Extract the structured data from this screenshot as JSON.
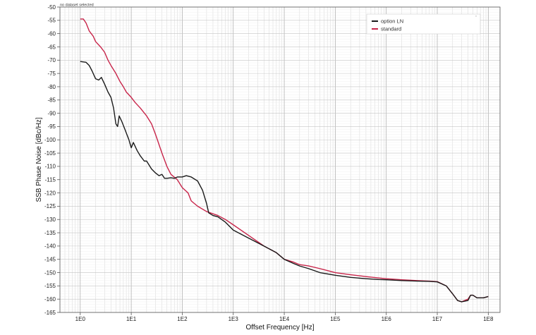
{
  "status": "no dataset selected",
  "chart_data": {
    "type": "line",
    "title": "",
    "xlabel": "Offset Frequency [Hz]",
    "ylabel": "SSB Phase Noise [dBc/Hz]",
    "x_scale": "log",
    "xlim": [
      0.4,
      170000000
    ],
    "ylim": [
      -165,
      -50
    ],
    "x_ticks": [
      1,
      10,
      100,
      1000,
      10000,
      100000,
      1000000,
      10000000,
      100000000
    ],
    "x_tick_labels": [
      "1E0",
      "1E1",
      "1E2",
      "1E3",
      "1E4",
      "1E5",
      "1E6",
      "1E7",
      "1E8"
    ],
    "y_ticks": [
      -50,
      -55,
      -60,
      -65,
      -70,
      -75,
      -80,
      -85,
      -90,
      -95,
      -100,
      -105,
      -110,
      -115,
      -120,
      -125,
      -130,
      -135,
      -140,
      -145,
      -150,
      -155,
      -160,
      -165
    ],
    "y_tick_labels": [
      "-50",
      "-55",
      "-60",
      "-65",
      "-70",
      "-75",
      "-80",
      "-85",
      "-90",
      "-95",
      "-100",
      "-105",
      "-110",
      "-115",
      "-120",
      "-125",
      "-130",
      "-135",
      "-140",
      "-145",
      "-150",
      "-155",
      "-160",
      "-165"
    ],
    "grid": true,
    "legend_position": "top-right",
    "series": [
      {
        "name": "option LN",
        "color": "#1a1a1a",
        "points": [
          [
            1,
            -70.5
          ],
          [
            1.3,
            -70.8
          ],
          [
            1.5,
            -72
          ],
          [
            1.7,
            -74
          ],
          [
            2,
            -77
          ],
          [
            2.3,
            -77.5
          ],
          [
            2.6,
            -76.5
          ],
          [
            3,
            -79
          ],
          [
            3.5,
            -82
          ],
          [
            4,
            -84
          ],
          [
            4.5,
            -88
          ],
          [
            5,
            -94
          ],
          [
            5.4,
            -95
          ],
          [
            5.8,
            -91
          ],
          [
            6.5,
            -93
          ],
          [
            7.5,
            -96
          ],
          [
            9,
            -100
          ],
          [
            10,
            -103
          ],
          [
            11,
            -101
          ],
          [
            13,
            -104
          ],
          [
            15,
            -106
          ],
          [
            18,
            -108
          ],
          [
            20,
            -108
          ],
          [
            25,
            -111
          ],
          [
            30,
            -112.5
          ],
          [
            35,
            -113.5
          ],
          [
            40,
            -113
          ],
          [
            45,
            -114.5
          ],
          [
            50,
            -114.5
          ],
          [
            60,
            -114.3
          ],
          [
            70,
            -114.5
          ],
          [
            80,
            -114
          ],
          [
            100,
            -114
          ],
          [
            120,
            -113.5
          ],
          [
            150,
            -114
          ],
          [
            200,
            -115.5
          ],
          [
            250,
            -119
          ],
          [
            300,
            -124
          ],
          [
            330,
            -127.5
          ],
          [
            400,
            -128.5
          ],
          [
            500,
            -129
          ],
          [
            700,
            -131
          ],
          [
            1000,
            -134
          ],
          [
            2000,
            -137
          ],
          [
            4000,
            -140
          ],
          [
            7000,
            -142.5
          ],
          [
            10000,
            -145
          ],
          [
            15000,
            -146.5
          ],
          [
            20000,
            -147.5
          ],
          [
            30000,
            -148.5
          ],
          [
            50000,
            -150
          ],
          [
            100000,
            -151
          ],
          [
            200000,
            -151.8
          ],
          [
            400000,
            -152.3
          ],
          [
            700000,
            -152.6
          ],
          [
            1000000,
            -152.7
          ],
          [
            2000000,
            -153
          ],
          [
            4000000,
            -153.2
          ],
          [
            7000000,
            -153.3
          ],
          [
            10000000,
            -153.5
          ],
          [
            15000000,
            -155
          ],
          [
            20000000,
            -158
          ],
          [
            25000000,
            -160.5
          ],
          [
            30000000,
            -161
          ],
          [
            40000000,
            -160.5
          ],
          [
            45000000,
            -158.5
          ],
          [
            50000000,
            -158.5
          ],
          [
            60000000,
            -159.5
          ],
          [
            80000000,
            -159.5
          ],
          [
            100000000,
            -159
          ]
        ]
      },
      {
        "name": "standard",
        "color": "#c8254a",
        "points": [
          [
            1,
            -54.5
          ],
          [
            1.15,
            -54.5
          ],
          [
            1.3,
            -56
          ],
          [
            1.5,
            -59
          ],
          [
            1.8,
            -61
          ],
          [
            2,
            -63
          ],
          [
            2.5,
            -65
          ],
          [
            3,
            -67
          ],
          [
            3.5,
            -70
          ],
          [
            4,
            -72
          ],
          [
            5,
            -75
          ],
          [
            6,
            -78
          ],
          [
            7,
            -80
          ],
          [
            8,
            -82
          ],
          [
            10,
            -84
          ],
          [
            12,
            -86
          ],
          [
            15,
            -88
          ],
          [
            20,
            -91
          ],
          [
            25,
            -94
          ],
          [
            30,
            -98
          ],
          [
            40,
            -105
          ],
          [
            50,
            -110
          ],
          [
            60,
            -113
          ],
          [
            80,
            -115
          ],
          [
            100,
            -118
          ],
          [
            130,
            -120
          ],
          [
            150,
            -123
          ],
          [
            200,
            -125
          ],
          [
            300,
            -127
          ],
          [
            500,
            -128.5
          ],
          [
            700,
            -130
          ],
          [
            1000,
            -132
          ],
          [
            2000,
            -136
          ],
          [
            4000,
            -140
          ],
          [
            7000,
            -142.5
          ],
          [
            10000,
            -145
          ],
          [
            15000,
            -146
          ],
          [
            20000,
            -147
          ],
          [
            30000,
            -147.5
          ],
          [
            50000,
            -148.5
          ],
          [
            100000,
            -150
          ],
          [
            200000,
            -150.8
          ],
          [
            400000,
            -151.5
          ],
          [
            700000,
            -152
          ],
          [
            1000000,
            -152.3
          ],
          [
            2000000,
            -152.7
          ],
          [
            4000000,
            -153
          ],
          [
            7000000,
            -153.2
          ],
          [
            10000000,
            -153.4
          ],
          [
            15000000,
            -155
          ],
          [
            20000000,
            -158
          ],
          [
            25000000,
            -160.5
          ],
          [
            30000000,
            -161
          ],
          [
            40000000,
            -160
          ],
          [
            45000000,
            -158.5
          ],
          [
            50000000,
            -158.5
          ],
          [
            60000000,
            -159.5
          ],
          [
            80000000,
            -159.5
          ],
          [
            100000000,
            -159
          ]
        ]
      }
    ]
  }
}
